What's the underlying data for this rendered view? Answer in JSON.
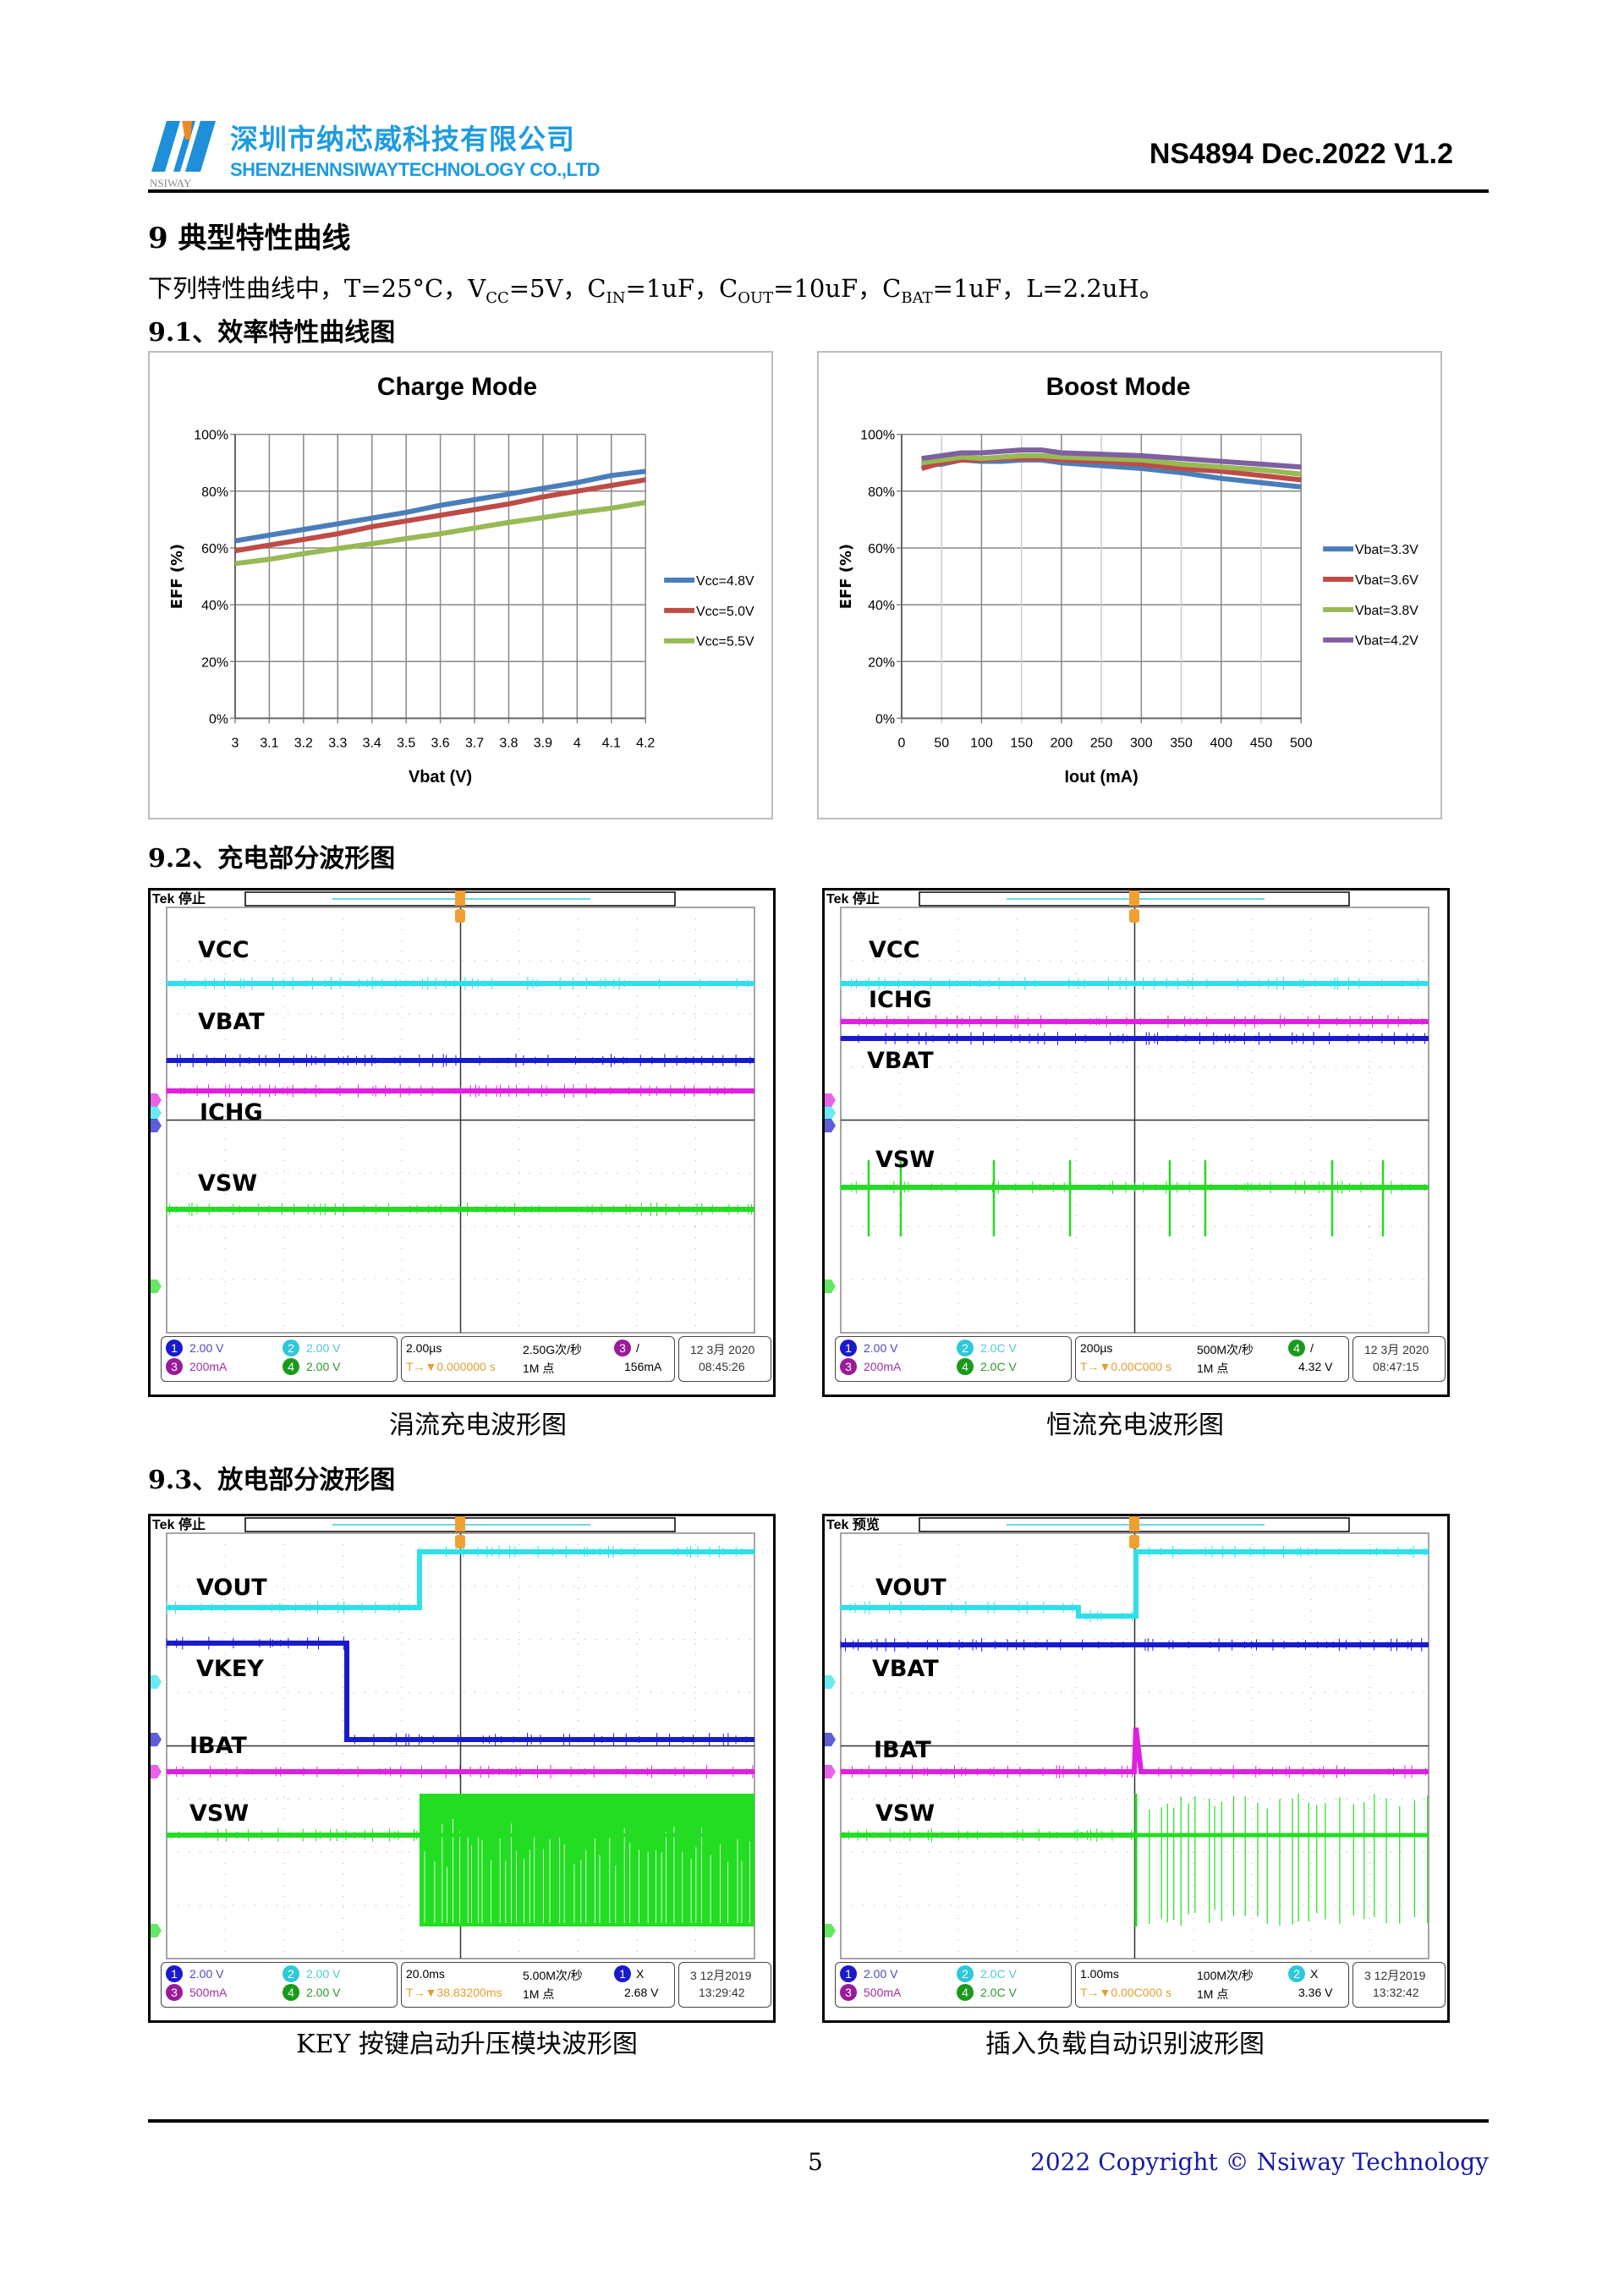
{
  "header": {
    "company_cn": "深圳市纳芯威科技有限公司",
    "company_en": "SHENZHENNSIWAYTECHNOLOGY CO.,LTD",
    "logo_text": "NSIWAY",
    "doc_id": "NS4894 Dec.2022 V1.2",
    "brand_color": "#1e9be0"
  },
  "section": {
    "title": "9  典型特性曲线",
    "desc_prefix": "下列特性曲线中，T=25°C，V",
    "vcc_sub": "CC",
    "desc_vcc": "=5V，C",
    "cin_sub": "IN",
    "desc_cin": "=1uF，C",
    "cout_sub": "OUT",
    "desc_cout": "=10uF，C",
    "cbat_sub": "BAT",
    "desc_cbat": "=1uF，L=2.2uH。",
    "sub1": "9.1、效率特性曲线图",
    "sub2": "9.2、充电部分波形图",
    "sub3": "9.3、放电部分波形图"
  },
  "chart_data": [
    {
      "type": "line",
      "title": "Charge Mode",
      "xlabel": "Vbat (V)",
      "ylabel": "EFF (%)",
      "x": [
        3,
        3.1,
        3.2,
        3.3,
        3.4,
        3.5,
        3.6,
        3.7,
        3.8,
        3.9,
        4,
        4.1,
        4.2
      ],
      "x_ticks": [
        "3",
        "3.1",
        "3.2",
        "3.3",
        "3.4",
        "3.5",
        "3.6",
        "3.7",
        "3.8",
        "3.9",
        "4",
        "4.1",
        "4.2"
      ],
      "xlim": [
        3,
        4.2
      ],
      "ylim": [
        0,
        100
      ],
      "y_ticks": [
        "0%",
        "20%",
        "40%",
        "60%",
        "80%",
        "100%"
      ],
      "grid": true,
      "legend": "right",
      "series": [
        {
          "name": "Vcc=4.8V",
          "color": "#4a7ebb",
          "values": [
            62.5,
            64.5,
            66.5,
            68.5,
            70.5,
            72.5,
            75,
            77,
            79,
            81,
            83,
            85.5,
            87
          ]
        },
        {
          "name": "Vcc=5.0V",
          "color": "#be4b48",
          "values": [
            59,
            61,
            63,
            65,
            67.5,
            69.5,
            71.5,
            73.5,
            75.5,
            78,
            80,
            82,
            84
          ]
        },
        {
          "name": "Vcc=5.5V",
          "color": "#98b954",
          "values": [
            54.5,
            56,
            58,
            59.8,
            61.5,
            63.3,
            65,
            67,
            69,
            70.7,
            72.5,
            74,
            76
          ]
        }
      ]
    },
    {
      "type": "line",
      "title": "Boost Mode",
      "xlabel": "Iout (mA)",
      "ylabel": "EFF (%)",
      "x": [
        25,
        50,
        75,
        100,
        125,
        150,
        175,
        200,
        250,
        300,
        350,
        400,
        450,
        500
      ],
      "x_ticks": [
        "0",
        "50",
        "100",
        "150",
        "200",
        "250",
        "300",
        "350",
        "400",
        "450",
        "500"
      ],
      "xlim": [
        0,
        500
      ],
      "ylim": [
        0,
        100
      ],
      "y_ticks": [
        "0%",
        "20%",
        "40%",
        "60%",
        "80%",
        "100%"
      ],
      "grid": true,
      "legend": "right",
      "series": [
        {
          "name": "Vbat=3.3V",
          "color": "#4a7ebb",
          "values": [
            89,
            89.5,
            91,
            90.5,
            90.5,
            91,
            91,
            90,
            89,
            88,
            86.5,
            84.5,
            83,
            81.5
          ]
        },
        {
          "name": "Vbat=3.6V",
          "color": "#be4b48",
          "values": [
            88,
            90,
            91,
            91,
            91.5,
            91.5,
            91.5,
            91,
            90.5,
            89.5,
            88,
            87,
            85.5,
            84
          ]
        },
        {
          "name": "Vbat=3.8V",
          "color": "#98b954",
          "values": [
            90,
            91,
            92,
            91.5,
            92,
            92.5,
            92.5,
            92,
            91.5,
            91,
            89.5,
            88.5,
            87.5,
            86
          ]
        },
        {
          "name": "Vbat=4.2V",
          "color": "#7d60a0",
          "values": [
            91.5,
            92.5,
            93.5,
            93.5,
            94,
            94.5,
            94.5,
            93.5,
            93,
            92.5,
            91.5,
            90.5,
            89.5,
            88.5
          ]
        }
      ]
    }
  ],
  "scopes": [
    {
      "status": "Tek 停止",
      "traces": [
        "VCC",
        "VBAT",
        "ICHG",
        "VSW"
      ],
      "ch1": "2.00 V",
      "ch2": "2.00 V",
      "ch3": "200mA",
      "ch4": "2.00 V",
      "timebase": "2.00µs",
      "sample_rate": "2.50G次/秒",
      "trig_ch": "3",
      "trig_type": "/",
      "trig_pos": "0.000000 s",
      "record": "1M 点",
      "trig_level": "156mA",
      "date": "12 3月 2020",
      "time": "08:45:26",
      "caption": "涓流充电波形图"
    },
    {
      "status": "Tek 停止",
      "traces": [
        "VCC",
        "ICHG",
        "VBAT",
        "VSW"
      ],
      "ch1": "2.00 V",
      "ch2": "2.0C V",
      "ch3": "200mA",
      "ch4": "2.0C V",
      "timebase": "200µs",
      "sample_rate": "500M次/秒",
      "trig_ch": "4",
      "trig_type": "/",
      "trig_pos": "0.00C000 s",
      "record": "1M 点",
      "trig_level": "4.32 V",
      "date": "12 3月 2020",
      "time": "08:47:15",
      "caption": "恒流充电波形图"
    },
    {
      "status": "Tek 停止",
      "traces": [
        "VOUT",
        "VKEY",
        "IBAT",
        "VSW"
      ],
      "ch1": "2.00 V",
      "ch2": "2.00 V",
      "ch3": "500mA",
      "ch4": "2.00 V",
      "timebase": "20.0ms",
      "sample_rate": "5.00M次/秒",
      "trig_ch": "1",
      "trig_type": "X",
      "trig_pos": "38.83200ms",
      "record": "1M 点",
      "trig_level": "2.68 V",
      "date": "3 12月2019",
      "time": "13:29:42",
      "caption": "KEY 按键启动升压模块波形图"
    },
    {
      "status": "Tek 预览",
      "traces": [
        "VOUT",
        "VBAT",
        "IBAT",
        "VSW"
      ],
      "ch1": "2.00 V",
      "ch2": "2.0C V",
      "ch3": "500mA",
      "ch4": "2.0C V",
      "timebase": "1.00ms",
      "sample_rate": "100M次/秒",
      "trig_ch": "2",
      "trig_type": "X",
      "trig_pos": "0.00C000 s",
      "record": "1M 点",
      "trig_level": "3.36 V",
      "date": "3 12月2019",
      "time": "13:32:42",
      "caption": "插入负载自动识别波形图"
    }
  ],
  "channel_colors": {
    "ch1": "#1a1acc",
    "ch2": "#2ee0ea",
    "ch3": "#e020e0",
    "ch4": "#22dd22",
    "trigger": "#f0a030"
  },
  "footer": {
    "page_number": "5",
    "copyright": "2022 Copyright © Nsiway Technology"
  }
}
